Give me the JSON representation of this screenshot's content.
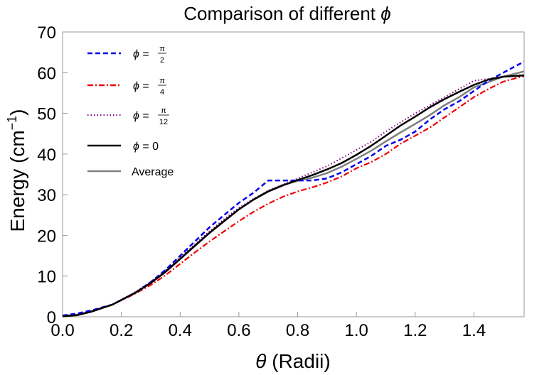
{
  "chart_data": {
    "type": "line",
    "title": "Comparison of different",
    "title_symbol": "ϕ",
    "xlabel_symbol": "θ",
    "xlabel": "(Radii)",
    "ylabel_base": "Energy (cm",
    "ylabel_sup": "−1",
    "ylabel_end": ")",
    "xlim": [
      0,
      1.5708
    ],
    "ylim": [
      0,
      70
    ],
    "xticks": [
      0.0,
      0.2,
      0.4,
      0.6,
      0.8,
      1.0,
      1.2,
      1.4
    ],
    "xtick_labels": [
      "0.0",
      "0.2",
      "0.4",
      "0.6",
      "0.8",
      "1.0",
      "1.2",
      "1.4"
    ],
    "yticks": [
      0,
      10,
      20,
      30,
      40,
      50,
      60,
      70
    ],
    "ytick_labels": [
      "0",
      "10",
      "20",
      "30",
      "40",
      "50",
      "60",
      "70"
    ],
    "legend_position": "top-left",
    "legend": [
      {
        "key": "pi2",
        "symbol": "ϕ",
        "eq": "=",
        "num": "π",
        "den": "2"
      },
      {
        "key": "pi4",
        "symbol": "ϕ",
        "eq": "=",
        "num": "π",
        "den": "4"
      },
      {
        "key": "pi12",
        "symbol": "ϕ",
        "eq": "=",
        "num": "π",
        "den": "12"
      },
      {
        "key": "zero",
        "symbol": "ϕ",
        "eq": "= 0"
      },
      {
        "key": "avg",
        "text": "Average"
      }
    ],
    "series": [
      {
        "key": "pi2",
        "color": "#0000ee",
        "style": "dashed",
        "x": [
          0,
          0.05,
          0.1,
          0.17,
          0.25,
          0.3,
          0.35,
          0.4,
          0.45,
          0.5,
          0.55,
          0.6,
          0.65,
          0.7,
          0.75,
          0.8,
          0.85,
          0.9,
          0.95,
          1.0,
          1.05,
          1.1,
          1.15,
          1.2,
          1.25,
          1.3,
          1.35,
          1.4,
          1.45,
          1.5,
          1.57
        ],
        "y": [
          0.3,
          0.8,
          1.6,
          3.0,
          6.0,
          8.5,
          11.5,
          15.0,
          18.5,
          22.0,
          25.0,
          28.0,
          30.5,
          33.5,
          33.5,
          33.5,
          33.5,
          34.0,
          35.5,
          37.5,
          39.5,
          42.0,
          43.5,
          45.5,
          48.5,
          51.0,
          53.0,
          55.5,
          58.0,
          60.0,
          62.7
        ]
      },
      {
        "key": "pi4",
        "color": "#ee0000",
        "style": "dashdot",
        "x": [
          0,
          0.05,
          0.1,
          0.17,
          0.25,
          0.3,
          0.35,
          0.4,
          0.45,
          0.5,
          0.55,
          0.6,
          0.65,
          0.7,
          0.75,
          0.8,
          0.85,
          0.9,
          0.95,
          1.0,
          1.05,
          1.1,
          1.15,
          1.2,
          1.25,
          1.3,
          1.35,
          1.4,
          1.45,
          1.5,
          1.57
        ],
        "y": [
          0.1,
          0.4,
          1.3,
          3.0,
          5.8,
          7.8,
          10.2,
          13.0,
          15.8,
          18.5,
          21.0,
          23.5,
          25.8,
          27.8,
          29.5,
          30.8,
          31.8,
          33.0,
          34.5,
          36.5,
          38.0,
          40.0,
          42.5,
          44.5,
          46.5,
          49.0,
          51.5,
          54.0,
          56.0,
          57.8,
          59.2
        ]
      },
      {
        "key": "pi12",
        "color": "#800080",
        "style": "dotted",
        "x": [
          0,
          0.05,
          0.1,
          0.17,
          0.25,
          0.3,
          0.35,
          0.4,
          0.45,
          0.5,
          0.55,
          0.6,
          0.65,
          0.7,
          0.75,
          0.8,
          0.85,
          0.9,
          0.95,
          1.0,
          1.05,
          1.1,
          1.15,
          1.2,
          1.25,
          1.3,
          1.35,
          1.4,
          1.45,
          1.5,
          1.57
        ],
        "y": [
          0.1,
          0.4,
          1.3,
          3.0,
          6.2,
          8.6,
          11.4,
          14.6,
          17.8,
          21.0,
          24.0,
          26.8,
          29.0,
          31.0,
          32.5,
          34.0,
          35.5,
          37.0,
          39.0,
          41.0,
          43.0,
          45.5,
          47.8,
          50.0,
          52.0,
          54.0,
          56.0,
          58.0,
          58.5,
          59.0,
          59.5
        ]
      },
      {
        "key": "zero",
        "color": "#000000",
        "style": "solid",
        "x": [
          0,
          0.05,
          0.1,
          0.17,
          0.25,
          0.3,
          0.35,
          0.4,
          0.45,
          0.5,
          0.55,
          0.6,
          0.65,
          0.7,
          0.75,
          0.8,
          0.85,
          0.9,
          0.95,
          1.0,
          1.05,
          1.1,
          1.15,
          1.2,
          1.25,
          1.3,
          1.35,
          1.4,
          1.45,
          1.5,
          1.57
        ],
        "y": [
          0.1,
          0.4,
          1.3,
          3.0,
          6.0,
          8.3,
          11.0,
          14.2,
          17.4,
          20.6,
          23.5,
          26.4,
          28.8,
          30.8,
          32.3,
          33.6,
          34.8,
          36.2,
          37.8,
          39.8,
          42.0,
          44.5,
          47.0,
          49.2,
          51.5,
          53.5,
          55.3,
          57.0,
          58.3,
          59.0,
          59.3
        ]
      },
      {
        "key": "avg",
        "color": "#808080",
        "style": "solid",
        "x": [
          0,
          0.05,
          0.1,
          0.17,
          0.25,
          0.3,
          0.35,
          0.4,
          0.45,
          0.5,
          0.55,
          0.6,
          0.65,
          0.7,
          0.75,
          0.8,
          0.85,
          0.9,
          0.95,
          1.0,
          1.05,
          1.1,
          1.15,
          1.2,
          1.25,
          1.3,
          1.35,
          1.4,
          1.45,
          1.5,
          1.57
        ],
        "y": [
          0.2,
          0.5,
          1.4,
          3.0,
          6.0,
          8.3,
          11.1,
          14.3,
          17.5,
          20.7,
          23.6,
          26.4,
          28.8,
          30.9,
          32.4,
          33.4,
          34.2,
          35.3,
          36.9,
          38.8,
          40.8,
          43.1,
          45.3,
          47.4,
          49.6,
          52.0,
          54.0,
          56.4,
          57.7,
          59.0,
          60.3
        ]
      }
    ]
  }
}
